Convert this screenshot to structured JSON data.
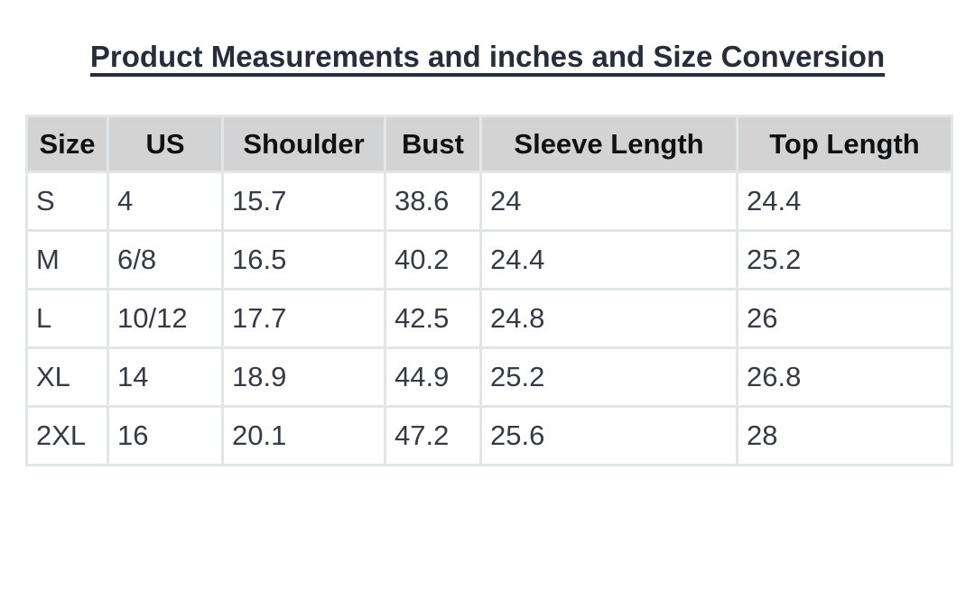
{
  "title": {
    "text": "Product Measurements and inches and Size Conversion"
  },
  "table": {
    "headers": [
      "Size",
      "US",
      "Shoulder",
      "Bust",
      "Sleeve Length",
      "Top Length"
    ],
    "rows": [
      [
        "S",
        "4",
        "15.7",
        "38.6",
        "24",
        "24.4"
      ],
      [
        "M",
        "6/8",
        "16.5",
        "40.2",
        "24.4",
        "25.2"
      ],
      [
        "L",
        "10/12",
        "17.7",
        "42.5",
        "24.8",
        "26"
      ],
      [
        "XL",
        "14",
        "18.9",
        "44.9",
        "25.2",
        "26.8"
      ],
      [
        "2XL",
        "16",
        "20.1",
        "47.2",
        "25.6",
        "28"
      ]
    ]
  },
  "colors": {
    "title_text": "#272d3b",
    "header_background": "#d3d3d3",
    "header_text": "#101112",
    "body_text": "#343b47",
    "cell_border": "#e3e6e9",
    "page_background": "#ffffff"
  }
}
